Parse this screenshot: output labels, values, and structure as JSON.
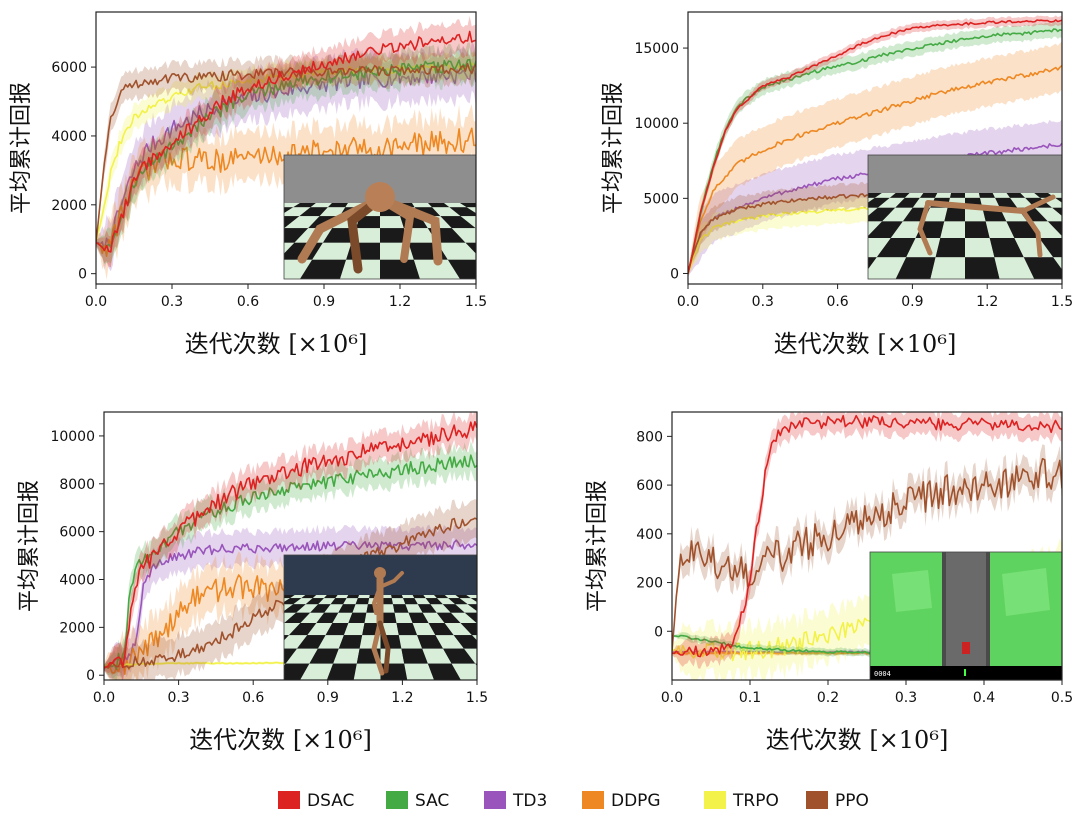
{
  "colors": {
    "DSAC": "#dd2222",
    "SAC": "#44aa44",
    "TD3": "#9955bb",
    "DDPG": "#ee8822",
    "TRPO": "#f2f24a",
    "PPO": "#a0522d"
  },
  "legend": [
    "DSAC",
    "SAC",
    "TD3",
    "DDPG",
    "TRPO",
    "PPO"
  ],
  "chart_data": [
    {
      "type": "line",
      "env_icon": "ant-robot-icon",
      "xlabel": "迭代次数 [×10⁶]",
      "ylabel": "平均累计回报",
      "xlim": [
        0,
        1.5
      ],
      "ylim": [
        -300,
        7600
      ],
      "xticks": [
        "0.0",
        "0.3",
        "0.6",
        "0.9",
        "1.2",
        "1.5"
      ],
      "yticks": [
        "0",
        "2000",
        "4000",
        "6000"
      ],
      "xtick_values": [
        0,
        0.3,
        0.6,
        0.9,
        1.2,
        1.5
      ],
      "ytick_values": [
        0,
        2000,
        4000,
        6000
      ],
      "series": [
        {
          "name": "DSAC",
          "x": [
            0,
            0.03,
            0.06,
            0.1,
            0.15,
            0.2,
            0.3,
            0.4,
            0.5,
            0.6,
            0.8,
            1.0,
            1.2,
            1.35,
            1.5
          ],
          "y": [
            900,
            700,
            800,
            1600,
            2700,
            3200,
            3800,
            4400,
            5000,
            5400,
            5900,
            6300,
            6600,
            6800,
            6900
          ],
          "band": 450,
          "noise": 180
        },
        {
          "name": "SAC",
          "x": [
            0,
            0.03,
            0.06,
            0.1,
            0.15,
            0.2,
            0.3,
            0.4,
            0.5,
            0.6,
            0.8,
            1.0,
            1.2,
            1.35,
            1.5
          ],
          "y": [
            900,
            800,
            900,
            1700,
            2600,
            3100,
            3700,
            4300,
            4800,
            5200,
            5600,
            5800,
            5900,
            6000,
            6100
          ],
          "band": 500,
          "noise": 200
        },
        {
          "name": "TD3",
          "x": [
            0,
            0.03,
            0.06,
            0.1,
            0.15,
            0.2,
            0.3,
            0.4,
            0.5,
            0.6,
            0.8,
            1.0,
            1.2,
            1.35,
            1.5
          ],
          "y": [
            900,
            800,
            1000,
            2000,
            3000,
            3600,
            4200,
            4600,
            4900,
            5100,
            5400,
            5600,
            5700,
            5750,
            5800
          ],
          "band": 700,
          "noise": 250
        },
        {
          "name": "DDPG",
          "x": [
            0,
            0.03,
            0.06,
            0.1,
            0.15,
            0.2,
            0.3,
            0.4,
            0.5,
            0.6,
            0.8,
            1.0,
            1.2,
            1.35,
            1.5
          ],
          "y": [
            900,
            700,
            900,
            1800,
            2600,
            3000,
            3400,
            3300,
            3300,
            3400,
            3500,
            3600,
            3700,
            3800,
            3900
          ],
          "band": 700,
          "noise": 350
        },
        {
          "name": "TRPO",
          "x": [
            0,
            0.03,
            0.06,
            0.1,
            0.15,
            0.2,
            0.3,
            0.4,
            0.5,
            0.6,
            0.8,
            1.0,
            1.2,
            1.35,
            1.5
          ],
          "y": [
            900,
            1900,
            3000,
            3900,
            4500,
            4800,
            5100,
            5400,
            5500,
            5600,
            5800,
            5900,
            5950,
            6000,
            6000
          ],
          "band": 350,
          "noise": 120
        },
        {
          "name": "PPO",
          "x": [
            0,
            0.03,
            0.06,
            0.1,
            0.15,
            0.2,
            0.3,
            0.4,
            0.5,
            0.6,
            0.8,
            1.0,
            1.2,
            1.35,
            1.5
          ],
          "y": [
            900,
            3000,
            4600,
            5300,
            5500,
            5600,
            5700,
            5700,
            5750,
            5800,
            5850,
            5900,
            5900,
            5950,
            5950
          ],
          "band": 400,
          "noise": 150
        }
      ]
    },
    {
      "type": "line",
      "env_icon": "half-cheetah-robot-icon",
      "xlabel": "迭代次数 [×10⁶]",
      "ylabel": "平均累计回报",
      "xlim": [
        0,
        1.5
      ],
      "ylim": [
        -700,
        17400
      ],
      "xticks": [
        "0.0",
        "0.3",
        "0.6",
        "0.9",
        "1.2",
        "1.5"
      ],
      "yticks": [
        "0",
        "5000",
        "10000",
        "15000"
      ],
      "xtick_values": [
        0,
        0.3,
        0.6,
        0.9,
        1.2,
        1.5
      ],
      "ytick_values": [
        0,
        5000,
        10000,
        15000
      ],
      "series": [
        {
          "name": "DSAC",
          "x": [
            0,
            0.02,
            0.05,
            0.1,
            0.15,
            0.2,
            0.3,
            0.4,
            0.5,
            0.6,
            0.7,
            0.8,
            0.9,
            1.0,
            1.2,
            1.35,
            1.5
          ],
          "y": [
            0,
            1500,
            4000,
            7000,
            9500,
            11000,
            12500,
            13000,
            13800,
            14500,
            15300,
            15900,
            16300,
            16500,
            16700,
            16800,
            16800
          ],
          "band": 300,
          "noise": 80
        },
        {
          "name": "SAC",
          "x": [
            0,
            0.02,
            0.05,
            0.1,
            0.15,
            0.2,
            0.3,
            0.4,
            0.5,
            0.6,
            0.7,
            0.8,
            0.9,
            1.0,
            1.2,
            1.35,
            1.5
          ],
          "y": [
            0,
            1500,
            4000,
            7200,
            9600,
            11200,
            12400,
            12900,
            13400,
            13800,
            14200,
            14600,
            15000,
            15300,
            15800,
            16000,
            16200
          ],
          "band": 500,
          "noise": 120
        },
        {
          "name": "TD3",
          "x": [
            0,
            0.02,
            0.05,
            0.1,
            0.2,
            0.3,
            0.4,
            0.5,
            0.6,
            0.7,
            0.8,
            0.9,
            1.0,
            1.2,
            1.35,
            1.5
          ],
          "y": [
            0,
            1200,
            2600,
            3600,
            4400,
            5000,
            5500,
            5900,
            6300,
            6600,
            6900,
            7200,
            7500,
            8000,
            8300,
            8600
          ],
          "band": 1600,
          "noise": 150
        },
        {
          "name": "DDPG",
          "x": [
            0,
            0.02,
            0.05,
            0.1,
            0.2,
            0.3,
            0.4,
            0.5,
            0.6,
            0.7,
            0.8,
            0.9,
            1.0,
            1.2,
            1.35,
            1.5
          ],
          "y": [
            0,
            1500,
            3500,
            5500,
            7300,
            8200,
            8900,
            9500,
            10000,
            10500,
            11000,
            11500,
            12000,
            12700,
            13200,
            13700
          ],
          "band": 1600,
          "noise": 150
        },
        {
          "name": "TRPO",
          "x": [
            0,
            0.02,
            0.05,
            0.1,
            0.2,
            0.3,
            0.4,
            0.5,
            0.6,
            0.7,
            0.8
          ],
          "y": [
            0,
            1000,
            2200,
            3000,
            3500,
            3800,
            4000,
            4100,
            4200,
            4300,
            4300
          ],
          "band": 900,
          "noise": 120
        },
        {
          "name": "PPO",
          "x": [
            0,
            0.02,
            0.05,
            0.1,
            0.2,
            0.3,
            0.4,
            0.5,
            0.6,
            0.7,
            0.8
          ],
          "y": [
            0,
            1300,
            2700,
            3600,
            4300,
            4600,
            4800,
            5000,
            5100,
            5200,
            5200
          ],
          "band": 800,
          "noise": 120
        }
      ]
    },
    {
      "type": "line",
      "env_icon": "humanoid-robot-icon",
      "xlabel": "迭代次数 [×10⁶]",
      "ylabel": "平均累计回报",
      "xlim": [
        0,
        1.5
      ],
      "ylim": [
        -200,
        11000
      ],
      "xticks": [
        "0.0",
        "0.3",
        "0.6",
        "0.9",
        "1.2",
        "1.5"
      ],
      "yticks": [
        "0",
        "2000",
        "4000",
        "6000",
        "8000",
        "10000"
      ],
      "xtick_values": [
        0,
        0.3,
        0.6,
        0.9,
        1.2,
        1.5
      ],
      "ytick_values": [
        0,
        2000,
        4000,
        6000,
        8000,
        10000
      ],
      "series": [
        {
          "name": "DSAC",
          "x": [
            0,
            0.05,
            0.08,
            0.1,
            0.12,
            0.15,
            0.2,
            0.3,
            0.4,
            0.5,
            0.6,
            0.8,
            1.0,
            1.2,
            1.35,
            1.5
          ],
          "y": [
            300,
            500,
            700,
            2000,
            3500,
            4500,
            5000,
            6000,
            6800,
            7500,
            8000,
            8700,
            9200,
            9700,
            10000,
            10300
          ],
          "band": 600,
          "noise": 350
        },
        {
          "name": "SAC",
          "x": [
            0,
            0.05,
            0.08,
            0.1,
            0.12,
            0.15,
            0.2,
            0.3,
            0.4,
            0.5,
            0.6,
            0.8,
            1.0,
            1.2,
            1.35,
            1.5
          ],
          "y": [
            300,
            500,
            900,
            3000,
            4300,
            4800,
            5200,
            6000,
            6600,
            7100,
            7400,
            7900,
            8300,
            8600,
            8800,
            9000
          ],
          "band": 600,
          "noise": 300
        },
        {
          "name": "TD3",
          "x": [
            0,
            0.05,
            0.1,
            0.13,
            0.16,
            0.2,
            0.3,
            0.4,
            0.5,
            0.6,
            0.8,
            1.0,
            1.2,
            1.35,
            1.5
          ],
          "y": [
            300,
            500,
            700,
            1500,
            3800,
            4600,
            5000,
            5200,
            5300,
            5300,
            5400,
            5400,
            5400,
            5450,
            5450
          ],
          "band": 700,
          "noise": 200
        },
        {
          "name": "DDPG",
          "x": [
            0,
            0.1,
            0.15,
            0.2,
            0.25,
            0.3,
            0.35,
            0.4,
            0.5,
            0.6,
            0.65,
            0.7,
            0.75
          ],
          "y": [
            400,
            500,
            900,
            1500,
            2000,
            2600,
            3100,
            3400,
            3700,
            3700,
            3600,
            3500,
            3500
          ],
          "band": 1000,
          "noise": 500
        },
        {
          "name": "TRPO",
          "x": [
            0,
            0.1,
            0.2,
            0.3,
            0.4,
            0.5,
            0.6,
            0.7,
            0.75
          ],
          "y": [
            400,
            450,
            480,
            500,
            500,
            500,
            500,
            520,
            520
          ],
          "band": 60,
          "noise": 20
        },
        {
          "name": "PPO",
          "x": [
            0,
            0.1,
            0.2,
            0.3,
            0.4,
            0.5,
            0.6,
            0.7,
            0.8,
            0.9,
            1.0,
            1.1,
            1.2,
            1.3,
            1.4,
            1.5
          ],
          "y": [
            300,
            500,
            600,
            800,
            1200,
            1700,
            2400,
            3000,
            3600,
            4200,
            4700,
            5100,
            5500,
            5900,
            6300,
            6600
          ],
          "band": 800,
          "noise": 250
        }
      ]
    },
    {
      "type": "line",
      "env_icon": "car-racing-icon",
      "xlabel": "迭代次数 [×10⁶]",
      "ylabel": "平均累计回报",
      "xlim": [
        0,
        0.5
      ],
      "ylim": [
        -200,
        900
      ],
      "xticks": [
        "0.0",
        "0.1",
        "0.2",
        "0.3",
        "0.4",
        "0.5"
      ],
      "yticks": [
        "0",
        "200",
        "400",
        "600",
        "800"
      ],
      "xtick_values": [
        0,
        0.1,
        0.2,
        0.3,
        0.4,
        0.5
      ],
      "ytick_values": [
        0,
        200,
        400,
        600,
        800
      ],
      "series": [
        {
          "name": "DSAC",
          "x": [
            0,
            0.02,
            0.04,
            0.06,
            0.08,
            0.1,
            0.11,
            0.12,
            0.13,
            0.14,
            0.16,
            0.2,
            0.25,
            0.3,
            0.35,
            0.4,
            0.45,
            0.5
          ],
          "y": [
            -90,
            -90,
            -80,
            -70,
            -40,
            200,
            450,
            650,
            780,
            820,
            850,
            860,
            860,
            860,
            850,
            850,
            845,
            840
          ],
          "band": 50,
          "noise": 25
        },
        {
          "name": "SAC",
          "x": [
            0,
            0.01,
            0.05,
            0.1,
            0.2,
            0.3,
            0.4,
            0.5
          ],
          "y": [
            -20,
            -20,
            -40,
            -70,
            -85,
            -90,
            -90,
            -90
          ],
          "band": 15,
          "noise": 5
        },
        {
          "name": "TD3",
          "x": [
            0,
            0.1,
            0.2,
            0.3,
            0.4,
            0.5
          ],
          "y": [
            -85,
            -85,
            -85,
            -85,
            -85,
            -85
          ],
          "band": 8,
          "noise": 3
        },
        {
          "name": "DDPG",
          "x": [
            0,
            0.1,
            0.2,
            0.3,
            0.4,
            0.5
          ],
          "y": [
            -90,
            -90,
            -90,
            -90,
            -90,
            -90
          ],
          "band": 8,
          "noise": 3
        },
        {
          "name": "TRPO",
          "x": [
            0,
            0.1,
            0.15,
            0.2,
            0.25,
            0.3,
            0.35,
            0.4,
            0.45,
            0.5
          ],
          "y": [
            -80,
            -80,
            -60,
            -20,
            20,
            60,
            100,
            150,
            200,
            250
          ],
          "band": 100,
          "noise": 40
        },
        {
          "name": "PPO",
          "x": [
            0,
            0.01,
            0.02,
            0.03,
            0.05,
            0.07,
            0.1,
            0.15,
            0.2,
            0.25,
            0.3,
            0.35,
            0.4,
            0.45,
            0.5
          ],
          "y": [
            -80,
            300,
            330,
            320,
            300,
            250,
            250,
            330,
            400,
            470,
            530,
            570,
            600,
            630,
            650
          ],
          "band": 60,
          "noise": 70
        }
      ]
    }
  ],
  "hud_text": "0004"
}
